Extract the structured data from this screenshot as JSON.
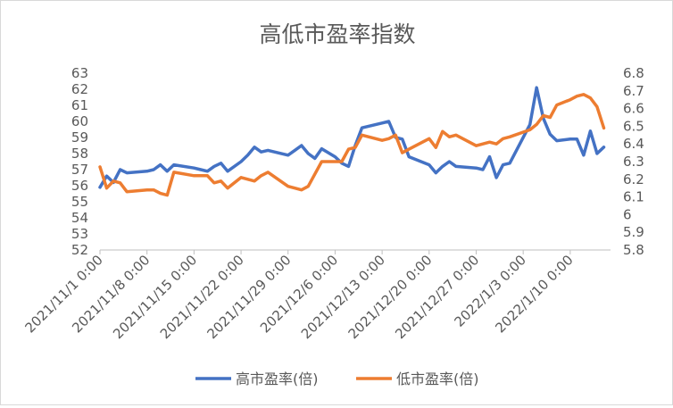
{
  "chart_data": {
    "type": "line",
    "title": "高低市盈率指数",
    "x_tick_labels": [
      "2021/11/1 0:00",
      "2021/11/8 0:00",
      "2021/11/15 0:00",
      "2021/11/22 0:00",
      "2021/11/29 0:00",
      "2021/12/6 0:00",
      "2021/12/13 0:00",
      "2021/12/20 0:00",
      "2021/12/27 0:00",
      "2022/1/3 0:00",
      "2022/1/10 0:00"
    ],
    "y_left": {
      "min": 52,
      "max": 63,
      "ticks": [
        52,
        53,
        54,
        55,
        56,
        57,
        58,
        59,
        60,
        61,
        62,
        63
      ]
    },
    "y_right": {
      "min": 5.8,
      "max": 6.8,
      "ticks": [
        "5.8",
        "5.9",
        "6",
        "6.1",
        "6.2",
        "6.3",
        "6.4",
        "6.5",
        "6.6",
        "6.7",
        "6.8"
      ]
    },
    "grid": false,
    "legend": "bottom",
    "series": [
      {
        "name": "高市盈率(倍)",
        "axis": "left",
        "color": "#4472c4",
        "points": [
          [
            "2021/11/1",
            55.9
          ],
          [
            "2021/11/2",
            56.6
          ],
          [
            "2021/11/3",
            56.2
          ],
          [
            "2021/11/4",
            57.0
          ],
          [
            "2021/11/5",
            56.8
          ],
          [
            "2021/11/8",
            56.9
          ],
          [
            "2021/11/9",
            57.0
          ],
          [
            "2021/11/10",
            57.3
          ],
          [
            "2021/11/11",
            56.9
          ],
          [
            "2021/11/12",
            57.3
          ],
          [
            "2021/11/15",
            57.1
          ],
          [
            "2021/11/16",
            57.0
          ],
          [
            "2021/11/17",
            56.9
          ],
          [
            "2021/11/18",
            57.2
          ],
          [
            "2021/11/19",
            57.4
          ],
          [
            "2021/11/20",
            56.9
          ],
          [
            "2021/11/22",
            57.5
          ],
          [
            "2021/11/23",
            57.9
          ],
          [
            "2021/11/24",
            58.4
          ],
          [
            "2021/11/25",
            58.1
          ],
          [
            "2021/11/26",
            58.2
          ],
          [
            "2021/11/29",
            57.9
          ],
          [
            "2021/11/30",
            58.2
          ],
          [
            "2021/12/1",
            58.5
          ],
          [
            "2021/12/2",
            58.0
          ],
          [
            "2021/12/3",
            57.7
          ],
          [
            "2021/12/4",
            58.3
          ],
          [
            "2021/12/6",
            57.8
          ],
          [
            "2021/12/7",
            57.4
          ],
          [
            "2021/12/8",
            57.2
          ],
          [
            "2021/12/9",
            58.5
          ],
          [
            "2021/12/10",
            59.6
          ],
          [
            "2021/12/13",
            59.9
          ],
          [
            "2021/12/14",
            60.0
          ],
          [
            "2021/12/15",
            59.0
          ],
          [
            "2021/12/16",
            58.9
          ],
          [
            "2021/12/17",
            57.8
          ],
          [
            "2021/12/20",
            57.3
          ],
          [
            "2021/12/21",
            56.8
          ],
          [
            "2021/12/22",
            57.2
          ],
          [
            "2021/12/23",
            57.5
          ],
          [
            "2021/12/24",
            57.2
          ],
          [
            "2021/12/27",
            57.1
          ],
          [
            "2021/12/28",
            57.0
          ],
          [
            "2021/12/29",
            57.8
          ],
          [
            "2021/12/30",
            56.5
          ],
          [
            "2021/12/31",
            57.3
          ],
          [
            "2022/1/1",
            57.4
          ],
          [
            "2022/1/4",
            59.8
          ],
          [
            "2022/1/5",
            62.1
          ],
          [
            "2022/1/6",
            60.2
          ],
          [
            "2022/1/7",
            59.2
          ],
          [
            "2022/1/8",
            58.8
          ],
          [
            "2022/1/10",
            58.9
          ],
          [
            "2022/1/11",
            58.9
          ],
          [
            "2022/1/12",
            57.9
          ],
          [
            "2022/1/13",
            59.4
          ],
          [
            "2022/1/14",
            58.0
          ],
          [
            "2022/1/15",
            58.4
          ]
        ]
      },
      {
        "name": "低市盈率(倍)",
        "axis": "right",
        "color": "#ed7d31",
        "points": [
          [
            "2021/11/1",
            6.27
          ],
          [
            "2021/11/2",
            6.15
          ],
          [
            "2021/11/3",
            6.19
          ],
          [
            "2021/11/4",
            6.18
          ],
          [
            "2021/11/5",
            6.13
          ],
          [
            "2021/11/8",
            6.14
          ],
          [
            "2021/11/9",
            6.14
          ],
          [
            "2021/11/10",
            6.12
          ],
          [
            "2021/11/11",
            6.11
          ],
          [
            "2021/11/12",
            6.24
          ],
          [
            "2021/11/15",
            6.22
          ],
          [
            "2021/11/16",
            6.22
          ],
          [
            "2021/11/17",
            6.22
          ],
          [
            "2021/11/18",
            6.18
          ],
          [
            "2021/11/19",
            6.19
          ],
          [
            "2021/11/20",
            6.15
          ],
          [
            "2021/11/22",
            6.21
          ],
          [
            "2021/11/23",
            6.2
          ],
          [
            "2021/11/24",
            6.19
          ],
          [
            "2021/11/25",
            6.22
          ],
          [
            "2021/11/26",
            6.24
          ],
          [
            "2021/11/29",
            6.16
          ],
          [
            "2021/11/30",
            6.15
          ],
          [
            "2021/12/1",
            6.14
          ],
          [
            "2021/12/2",
            6.16
          ],
          [
            "2021/12/3",
            6.23
          ],
          [
            "2021/12/4",
            6.3
          ],
          [
            "2021/12/6",
            6.3
          ],
          [
            "2021/12/7",
            6.3
          ],
          [
            "2021/12/8",
            6.37
          ],
          [
            "2021/12/9",
            6.38
          ],
          [
            "2021/12/10",
            6.45
          ],
          [
            "2021/12/13",
            6.42
          ],
          [
            "2021/12/14",
            6.43
          ],
          [
            "2021/12/15",
            6.45
          ],
          [
            "2021/12/16",
            6.35
          ],
          [
            "2021/12/17",
            6.37
          ],
          [
            "2021/12/20",
            6.43
          ],
          [
            "2021/12/21",
            6.38
          ],
          [
            "2021/12/22",
            6.47
          ],
          [
            "2021/12/23",
            6.44
          ],
          [
            "2021/12/24",
            6.45
          ],
          [
            "2021/12/27",
            6.39
          ],
          [
            "2021/12/28",
            6.4
          ],
          [
            "2021/12/29",
            6.41
          ],
          [
            "2021/12/30",
            6.4
          ],
          [
            "2021/12/31",
            6.43
          ],
          [
            "2022/1/1",
            6.44
          ],
          [
            "2022/1/4",
            6.48
          ],
          [
            "2022/1/5",
            6.51
          ],
          [
            "2022/1/6",
            6.56
          ],
          [
            "2022/1/7",
            6.55
          ],
          [
            "2022/1/8",
            6.62
          ],
          [
            "2022/1/10",
            6.65
          ],
          [
            "2022/1/11",
            6.67
          ],
          [
            "2022/1/12",
            6.68
          ],
          [
            "2022/1/13",
            6.66
          ],
          [
            "2022/1/14",
            6.61
          ],
          [
            "2022/1/15",
            6.49
          ]
        ]
      }
    ]
  }
}
